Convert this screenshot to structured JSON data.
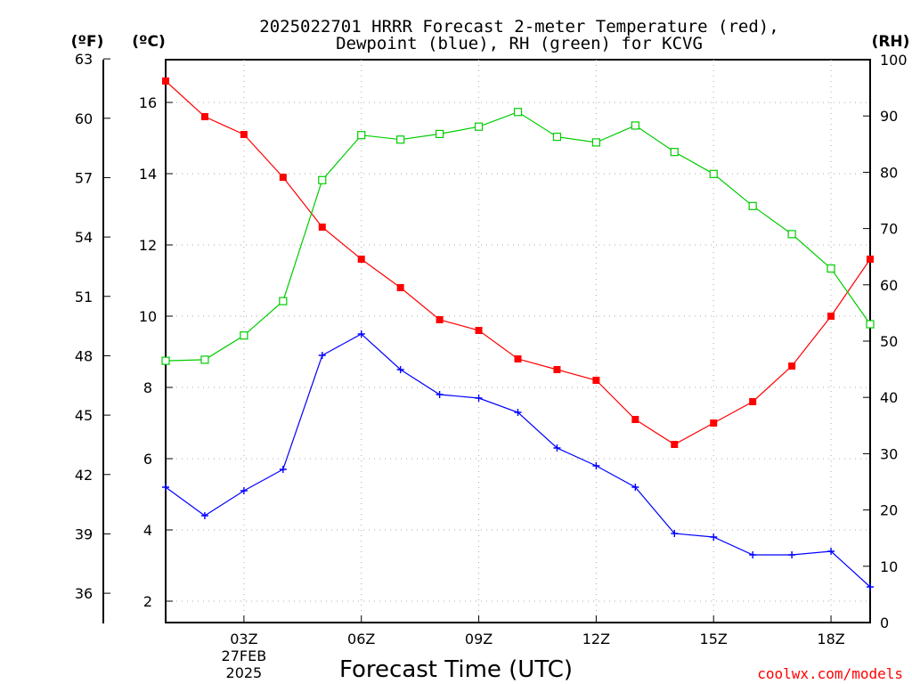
{
  "chart_data": {
    "type": "line",
    "title_line1": "2025022701 HRRR Forecast 2-meter Temperature (red),",
    "title_line2": "Dewpoint (blue), RH (green) for KCVG",
    "xlabel": "Forecast Time (UTC)",
    "credit": "coolwx.com/models",
    "units": {
      "fahrenheit": "(ºF)",
      "celsius": "(ºC)",
      "rh": "(RH)"
    },
    "x_hours": [
      1,
      2,
      3,
      4,
      5,
      6,
      7,
      8,
      9,
      10,
      11,
      12,
      13,
      14,
      15,
      16,
      17,
      18,
      19
    ],
    "x_ticks": [
      {
        "hour": 3,
        "label": "03Z",
        "sub1": "27FEB",
        "sub2": "2025"
      },
      {
        "hour": 6,
        "label": "06Z"
      },
      {
        "hour": 9,
        "label": "09Z"
      },
      {
        "hour": 12,
        "label": "12Z"
      },
      {
        "hour": 15,
        "label": "15Z"
      },
      {
        "hour": 18,
        "label": "18Z"
      }
    ],
    "xlim": [
      1,
      19
    ],
    "celsius_axis": {
      "ylim": [
        1.4,
        17.2
      ],
      "ticks": [
        2,
        4,
        6,
        8,
        10,
        12,
        14,
        16
      ]
    },
    "fahrenheit_axis": {
      "ticks": [
        36,
        39,
        42,
        45,
        48,
        51,
        54,
        57,
        60,
        63
      ]
    },
    "rh_axis": {
      "ylim": [
        0,
        100
      ],
      "ticks": [
        0,
        10,
        20,
        30,
        40,
        50,
        60,
        70,
        80,
        90,
        100
      ]
    },
    "grid": true,
    "series": [
      {
        "name": "Temperature",
        "axis": "celsius",
        "color": "#ff0000",
        "marker": "filled-square",
        "values": [
          16.6,
          15.6,
          15.1,
          13.9,
          12.5,
          11.6,
          10.8,
          9.9,
          9.6,
          8.8,
          8.5,
          8.2,
          7.1,
          6.4,
          7.0,
          7.6,
          8.6,
          10.0,
          11.6
        ]
      },
      {
        "name": "Dewpoint",
        "axis": "celsius",
        "color": "#0000ff",
        "marker": "plus",
        "values": [
          5.2,
          4.4,
          5.1,
          5.7,
          8.9,
          9.5,
          8.5,
          7.8,
          7.7,
          7.3,
          6.3,
          5.8,
          5.2,
          3.9,
          3.8,
          3.3,
          3.3,
          3.4,
          2.4
        ]
      },
      {
        "name": "RH",
        "axis": "rh",
        "color": "#00cc00",
        "marker": "open-square",
        "values": [
          46.5,
          46.7,
          51.0,
          57.1,
          78.6,
          86.6,
          85.8,
          86.8,
          88.1,
          90.7,
          86.3,
          85.3,
          88.3,
          83.6,
          79.7,
          74.0,
          69.0,
          62.9,
          53.0
        ]
      }
    ]
  }
}
